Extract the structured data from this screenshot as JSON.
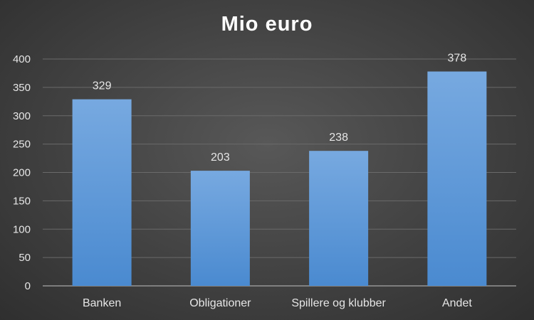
{
  "chart_data": {
    "type": "bar",
    "title": "Mio euro",
    "xlabel": "",
    "ylabel": "",
    "categories": [
      "Banken",
      "Obligationer",
      "Spillere og klubber",
      "Andet"
    ],
    "values": [
      329,
      203,
      238,
      378
    ],
    "data_labels": [
      "329",
      "203",
      "238",
      "378"
    ],
    "ylim": [
      0,
      400
    ],
    "y_ticks": [
      0,
      50,
      100,
      150,
      200,
      250,
      300,
      350,
      400
    ],
    "grid": true,
    "legend": "none",
    "colors": {
      "bar_top": "#77a9e0",
      "bar_bottom": "#4a8ad0",
      "grid": "#6a6a6a",
      "axis": "#a6a6a6",
      "text": "#ffffff",
      "label_text": "#e6e6e6"
    }
  }
}
